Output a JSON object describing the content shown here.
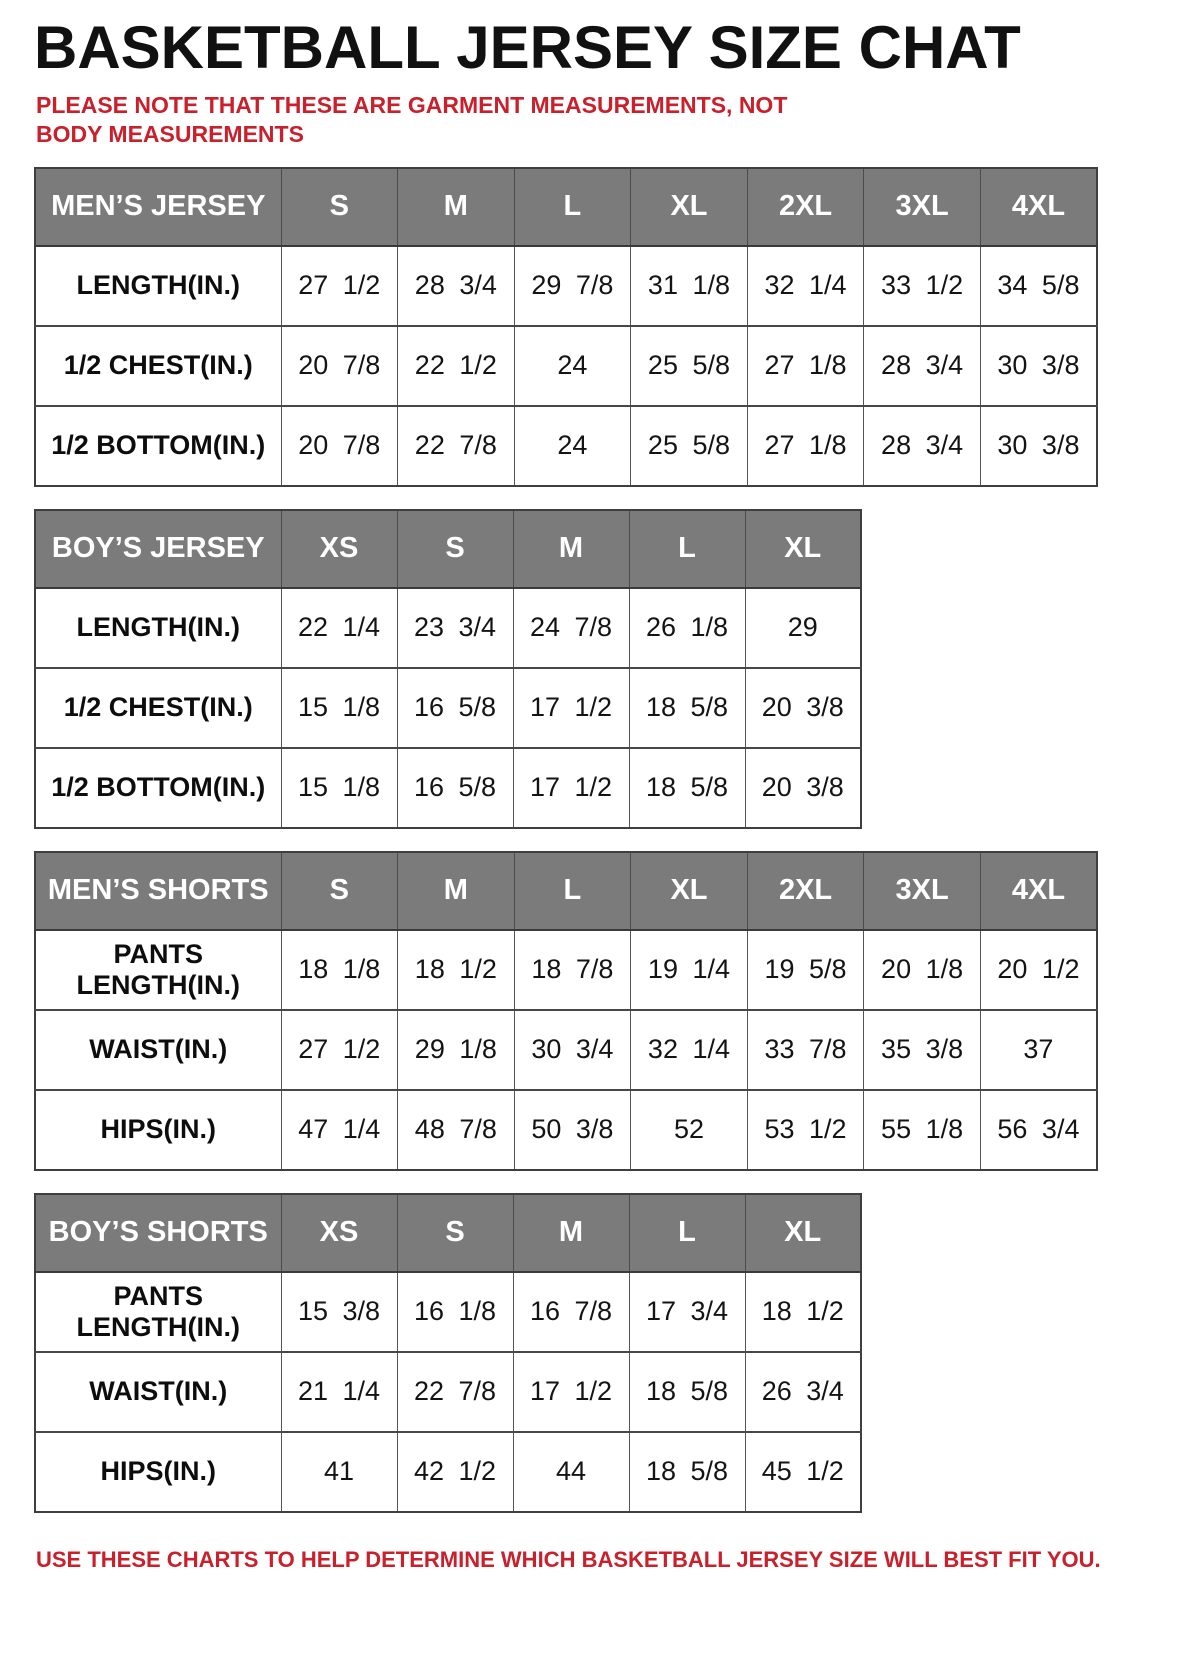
{
  "page": {
    "title": "BASKETBALL JERSEY SIZE CHAT",
    "note": "PLEASE NOTE THAT THESE ARE GARMENT MEASUREMENTS, NOT BODY MEASUREMENTS",
    "footer": "USE THESE CHARTS TO HELP DETERMINE WHICH BASKETBALL JERSEY SIZE WILL BEST FIT YOU.",
    "accent_red": "#c9202b",
    "header_gray": "#7b7b7b",
    "border_dark": "#3f3f3f",
    "text_black": "#111111"
  },
  "tables": [
    {
      "id": "mens-jersey",
      "label": "MEN’S JERSEY",
      "wide": true,
      "sizes": [
        "S",
        "M",
        "L",
        "XL",
        "2XL",
        "3XL",
        "4XL"
      ],
      "rows": [
        {
          "label": "LENGTH(IN.)",
          "values": [
            "27 1/2",
            "28 3/4",
            "29 7/8",
            "31 1/8",
            "32 1/4",
            "33 1/2",
            "34 5/8"
          ]
        },
        {
          "label": "1/2 CHEST(IN.)",
          "values": [
            "20 7/8",
            "22 1/2",
            "24",
            "25 5/8",
            "27 1/8",
            "28 3/4",
            "30 3/8"
          ]
        },
        {
          "label": "1/2 BOTTOM(IN.)",
          "values": [
            "20 7/8",
            "22 7/8",
            "24",
            "25 5/8",
            "27 1/8",
            "28 3/4",
            "30 3/8"
          ]
        }
      ]
    },
    {
      "id": "boys-jersey",
      "label": "BOY’S JERSEY",
      "wide": false,
      "sizes": [
        "XS",
        "S",
        "M",
        "L",
        "XL"
      ],
      "rows": [
        {
          "label": "LENGTH(IN.)",
          "values": [
            "22 1/4",
            "23 3/4",
            "24 7/8",
            "26 1/8",
            "29"
          ]
        },
        {
          "label": "1/2 CHEST(IN.)",
          "values": [
            "15 1/8",
            "16 5/8",
            "17 1/2",
            "18 5/8",
            "20 3/8"
          ]
        },
        {
          "label": "1/2 BOTTOM(IN.)",
          "values": [
            "15 1/8",
            "16 5/8",
            "17 1/2",
            "18 5/8",
            "20 3/8"
          ]
        }
      ]
    },
    {
      "id": "mens-shorts",
      "label": "MEN’S SHORTS",
      "wide": true,
      "sizes": [
        "S",
        "M",
        "L",
        "XL",
        "2XL",
        "3XL",
        "4XL"
      ],
      "rows": [
        {
          "label": "PANTS LENGTH(IN.)",
          "values": [
            "18 1/8",
            "18 1/2",
            "18 7/8",
            "19 1/4",
            "19 5/8",
            "20 1/8",
            "20 1/2"
          ]
        },
        {
          "label": "WAIST(IN.)",
          "values": [
            "27 1/2",
            "29 1/8",
            "30 3/4",
            "32 1/4",
            "33 7/8",
            "35 3/8",
            "37"
          ]
        },
        {
          "label": "HIPS(IN.)",
          "values": [
            "47 1/4",
            "48 7/8",
            "50 3/8",
            "52",
            "53 1/2",
            "55 1/8",
            "56 3/4"
          ]
        }
      ]
    },
    {
      "id": "boys-shorts",
      "label": "BOY’S SHORTS",
      "wide": false,
      "sizes": [
        "XS",
        "S",
        "M",
        "L",
        "XL"
      ],
      "rows": [
        {
          "label": "PANTS LENGTH(IN.)",
          "values": [
            "15 3/8",
            "16 1/8",
            "16 7/8",
            "17 3/4",
            "18 1/2"
          ]
        },
        {
          "label": "WAIST(IN.)",
          "values": [
            "21 1/4",
            "22 7/8",
            "17 1/2",
            "18 5/8",
            "26 3/4"
          ]
        },
        {
          "label": "HIPS(IN.)",
          "values": [
            "41",
            "42 1/2",
            "44",
            "18 5/8",
            "45 1/2"
          ]
        }
      ]
    }
  ]
}
